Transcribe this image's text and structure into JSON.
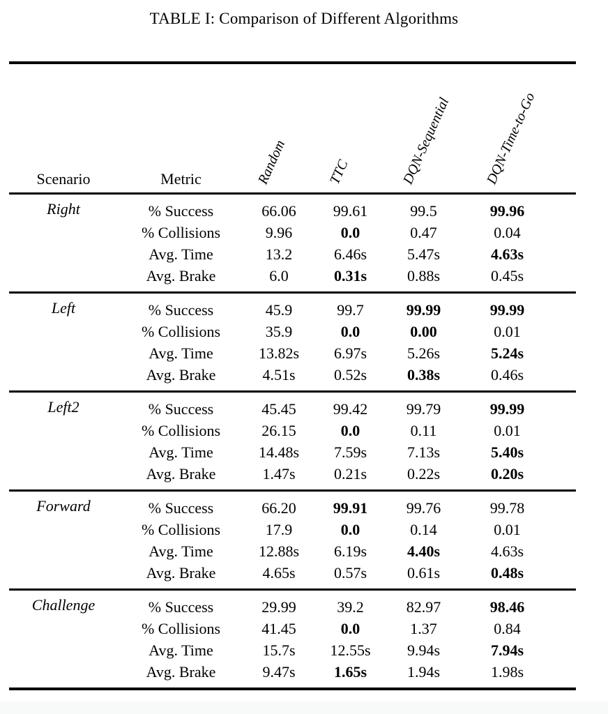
{
  "title": "TABLE I: Comparison of Different Algorithms",
  "colors": {
    "text": "#000000",
    "background": "#ffffff",
    "rule": "#000000"
  },
  "table": {
    "scenario_header": "Scenario",
    "metric_header": "Metric",
    "algorithms": [
      "Random",
      "TTC",
      "DQN-Sequential",
      "DQN-Time-to-Go"
    ],
    "sections": [
      {
        "scenario": "Right",
        "rows": [
          {
            "metric": "% Success",
            "values": [
              "66.06",
              "99.61",
              "99.5",
              "99.96"
            ],
            "bold": [
              false,
              false,
              false,
              true
            ]
          },
          {
            "metric": "% Collisions",
            "values": [
              "9.96",
              "0.0",
              "0.47",
              "0.04"
            ],
            "bold": [
              false,
              true,
              false,
              false
            ]
          },
          {
            "metric": "Avg. Time",
            "values": [
              "13.2",
              "6.46s",
              "5.47s",
              "4.63s"
            ],
            "bold": [
              false,
              false,
              false,
              true
            ]
          },
          {
            "metric": "Avg. Brake",
            "values": [
              "6.0",
              "0.31s",
              "0.88s",
              "0.45s"
            ],
            "bold": [
              false,
              true,
              false,
              false
            ]
          }
        ]
      },
      {
        "scenario": "Left",
        "rows": [
          {
            "metric": "% Success",
            "values": [
              "45.9",
              "99.7",
              "99.99",
              "99.99"
            ],
            "bold": [
              false,
              false,
              true,
              true
            ]
          },
          {
            "metric": "% Collisions",
            "values": [
              "35.9",
              "0.0",
              "0.00",
              "0.01"
            ],
            "bold": [
              false,
              true,
              true,
              false
            ]
          },
          {
            "metric": "Avg. Time",
            "values": [
              "13.82s",
              "6.97s",
              "5.26s",
              "5.24s"
            ],
            "bold": [
              false,
              false,
              false,
              true
            ]
          },
          {
            "metric": "Avg. Brake",
            "values": [
              "4.51s",
              "0.52s",
              "0.38s",
              "0.46s"
            ],
            "bold": [
              false,
              false,
              true,
              false
            ]
          }
        ]
      },
      {
        "scenario": "Left2",
        "rows": [
          {
            "metric": "% Success",
            "values": [
              "45.45",
              "99.42",
              "99.79",
              "99.99"
            ],
            "bold": [
              false,
              false,
              false,
              true
            ]
          },
          {
            "metric": "% Collisions",
            "values": [
              "26.15",
              "0.0",
              "0.11",
              "0.01"
            ],
            "bold": [
              false,
              true,
              false,
              false
            ]
          },
          {
            "metric": "Avg. Time",
            "values": [
              "14.48s",
              "7.59s",
              "7.13s",
              "5.40s"
            ],
            "bold": [
              false,
              false,
              false,
              true
            ]
          },
          {
            "metric": "Avg. Brake",
            "values": [
              "1.47s",
              "0.21s",
              "0.22s",
              "0.20s"
            ],
            "bold": [
              false,
              false,
              false,
              true
            ]
          }
        ]
      },
      {
        "scenario": "Forward",
        "rows": [
          {
            "metric": "% Success",
            "values": [
              "66.20",
              "99.91",
              "99.76",
              "99.78"
            ],
            "bold": [
              false,
              true,
              false,
              false
            ]
          },
          {
            "metric": "% Collisions",
            "values": [
              "17.9",
              "0.0",
              "0.14",
              "0.01"
            ],
            "bold": [
              false,
              true,
              false,
              false
            ]
          },
          {
            "metric": "Avg. Time",
            "values": [
              "12.88s",
              "6.19s",
              "4.40s",
              "4.63s"
            ],
            "bold": [
              false,
              false,
              true,
              false
            ]
          },
          {
            "metric": "Avg. Brake",
            "values": [
              "4.65s",
              "0.57s",
              "0.61s",
              "0.48s"
            ],
            "bold": [
              false,
              false,
              false,
              true
            ]
          }
        ]
      },
      {
        "scenario": "Challenge",
        "rows": [
          {
            "metric": "% Success",
            "values": [
              "29.99",
              "39.2",
              "82.97",
              "98.46"
            ],
            "bold": [
              false,
              false,
              false,
              true
            ]
          },
          {
            "metric": "% Collisions",
            "values": [
              "41.45",
              "0.0",
              "1.37",
              "0.84"
            ],
            "bold": [
              false,
              true,
              false,
              false
            ]
          },
          {
            "metric": "Avg. Time",
            "values": [
              "15.7s",
              "12.55s",
              "9.94s",
              "7.94s"
            ],
            "bold": [
              false,
              false,
              false,
              true
            ]
          },
          {
            "metric": "Avg. Brake",
            "values": [
              "9.47s",
              "1.65s",
              "1.94s",
              "1.98s"
            ],
            "bold": [
              false,
              true,
              false,
              false
            ]
          }
        ]
      }
    ]
  }
}
